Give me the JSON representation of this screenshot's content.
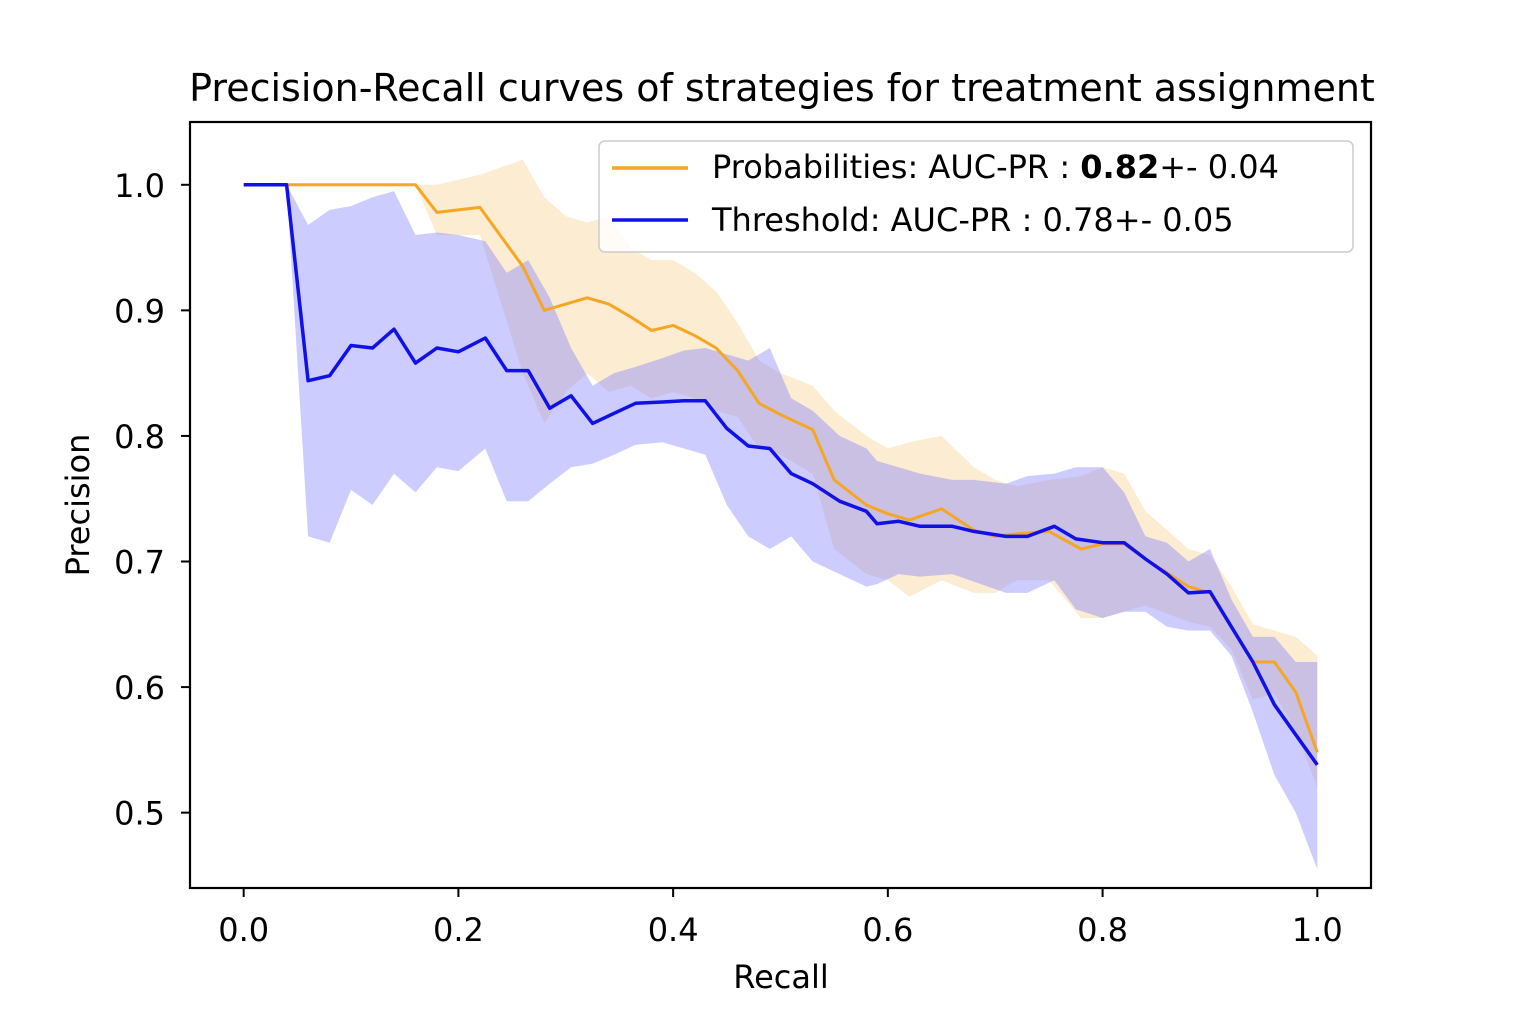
{
  "chart_data": {
    "type": "line",
    "title": "Precision-Recall curves of strategies for treatment assignment",
    "xlabel": "Recall",
    "ylabel": "Precision",
    "xlim": [
      -0.05,
      1.05
    ],
    "ylim": [
      0.44,
      1.05
    ],
    "xticks": [
      0.0,
      0.2,
      0.4,
      0.6,
      0.8,
      1.0
    ],
    "xtick_labels": [
      "0.0",
      "0.2",
      "0.4",
      "0.6",
      "0.8",
      "1.0"
    ],
    "yticks": [
      0.5,
      0.6,
      0.7,
      0.8,
      0.9,
      1.0
    ],
    "ytick_labels": [
      "0.5",
      "0.6",
      "0.7",
      "0.8",
      "0.9",
      "1.0"
    ],
    "grid": false,
    "legend_position": "top-right",
    "series": [
      {
        "name": "Probabilities",
        "legend_prefix": "Probabilities: AUC-PR : ",
        "legend_bold": "0.82",
        "legend_suffix": "+- 0.04",
        "color": "#f5a623",
        "band_color": "#f5c97a",
        "x": [
          0.0,
          0.04,
          0.16,
          0.18,
          0.22,
          0.26,
          0.28,
          0.3,
          0.32,
          0.34,
          0.36,
          0.38,
          0.4,
          0.42,
          0.44,
          0.46,
          0.48,
          0.5,
          0.53,
          0.55,
          0.58,
          0.6,
          0.62,
          0.65,
          0.68,
          0.7,
          0.72,
          0.75,
          0.78,
          0.8,
          0.82,
          0.84,
          0.88,
          0.9,
          0.92,
          0.94,
          0.96,
          0.98,
          1.0
        ],
        "values": [
          1.0,
          1.0,
          1.0,
          0.978,
          0.982,
          0.935,
          0.9,
          0.905,
          0.91,
          0.905,
          0.895,
          0.884,
          0.888,
          0.88,
          0.87,
          0.852,
          0.826,
          0.817,
          0.805,
          0.765,
          0.745,
          0.738,
          0.733,
          0.742,
          0.725,
          0.72,
          0.722,
          0.724,
          0.71,
          0.714,
          0.714,
          0.702,
          0.68,
          0.675,
          0.648,
          0.62,
          0.62,
          0.596,
          0.548
        ],
        "upper": [
          1.0,
          1.0,
          1.0,
          1.0,
          1.008,
          1.02,
          0.99,
          0.975,
          0.97,
          0.975,
          0.95,
          0.94,
          0.94,
          0.93,
          0.915,
          0.89,
          0.86,
          0.85,
          0.84,
          0.82,
          0.8,
          0.79,
          0.795,
          0.8,
          0.775,
          0.765,
          0.76,
          0.765,
          0.768,
          0.775,
          0.77,
          0.74,
          0.71,
          0.705,
          0.68,
          0.65,
          0.645,
          0.64,
          0.625
        ],
        "lower": [
          1.0,
          1.0,
          1.0,
          0.96,
          0.96,
          0.85,
          0.81,
          0.835,
          0.85,
          0.835,
          0.84,
          0.83,
          0.835,
          0.83,
          0.82,
          0.815,
          0.79,
          0.785,
          0.77,
          0.71,
          0.69,
          0.685,
          0.672,
          0.685,
          0.675,
          0.675,
          0.685,
          0.685,
          0.655,
          0.655,
          0.66,
          0.665,
          0.652,
          0.648,
          0.63,
          0.59,
          0.595,
          0.565,
          0.52
        ]
      },
      {
        "name": "Threshold",
        "legend_prefix": "Threshold: AUC-PR : ",
        "legend_bold": "",
        "legend_suffix": "0.78+- 0.05",
        "color": "#1010e8",
        "band_color": "#8080ff",
        "x": [
          0.0,
          0.04,
          0.06,
          0.08,
          0.1,
          0.12,
          0.14,
          0.16,
          0.18,
          0.2,
          0.225,
          0.245,
          0.265,
          0.285,
          0.305,
          0.325,
          0.345,
          0.365,
          0.39,
          0.41,
          0.43,
          0.45,
          0.47,
          0.49,
          0.51,
          0.53,
          0.555,
          0.58,
          0.59,
          0.61,
          0.63,
          0.66,
          0.68,
          0.71,
          0.73,
          0.755,
          0.775,
          0.8,
          0.82,
          0.84,
          0.86,
          0.88,
          0.9,
          0.92,
          0.94,
          0.96,
          0.98,
          1.0
        ],
        "values": [
          1.0,
          1.0,
          0.844,
          0.848,
          0.872,
          0.87,
          0.885,
          0.858,
          0.87,
          0.867,
          0.878,
          0.852,
          0.852,
          0.822,
          0.832,
          0.81,
          0.818,
          0.826,
          0.827,
          0.828,
          0.828,
          0.806,
          0.792,
          0.79,
          0.77,
          0.762,
          0.748,
          0.74,
          0.73,
          0.732,
          0.728,
          0.728,
          0.724,
          0.72,
          0.72,
          0.728,
          0.718,
          0.715,
          0.715,
          0.702,
          0.69,
          0.675,
          0.676,
          0.648,
          0.62,
          0.586,
          0.562,
          0.538
        ],
        "upper": [
          1.0,
          1.0,
          0.968,
          0.98,
          0.983,
          0.99,
          0.995,
          0.96,
          0.962,
          0.96,
          0.955,
          0.93,
          0.94,
          0.91,
          0.87,
          0.84,
          0.85,
          0.855,
          0.862,
          0.868,
          0.87,
          0.865,
          0.86,
          0.87,
          0.83,
          0.82,
          0.8,
          0.79,
          0.78,
          0.775,
          0.77,
          0.765,
          0.765,
          0.762,
          0.768,
          0.77,
          0.775,
          0.775,
          0.755,
          0.72,
          0.715,
          0.7,
          0.71,
          0.67,
          0.64,
          0.64,
          0.62,
          0.62
        ],
        "lower": [
          1.0,
          1.0,
          0.72,
          0.715,
          0.757,
          0.745,
          0.77,
          0.755,
          0.775,
          0.772,
          0.79,
          0.748,
          0.748,
          0.762,
          0.775,
          0.778,
          0.785,
          0.793,
          0.795,
          0.79,
          0.785,
          0.745,
          0.72,
          0.71,
          0.72,
          0.7,
          0.69,
          0.68,
          0.682,
          0.69,
          0.688,
          0.69,
          0.684,
          0.675,
          0.675,
          0.685,
          0.662,
          0.655,
          0.66,
          0.66,
          0.648,
          0.645,
          0.645,
          0.625,
          0.58,
          0.53,
          0.5,
          0.455
        ]
      }
    ]
  }
}
